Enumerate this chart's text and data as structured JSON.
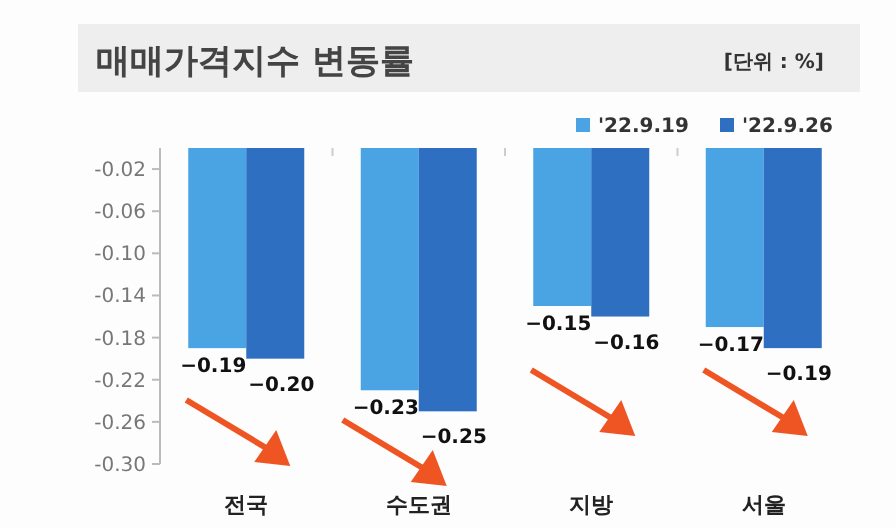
{
  "chart_data": {
    "type": "bar",
    "title": "매매가격지수 변동률",
    "subtitle": "[단위 : %]",
    "categories": [
      "전국",
      "수도권",
      "지방",
      "서울"
    ],
    "series": [
      {
        "name": "'22.9.19",
        "color": "#4aa3e2",
        "values": [
          -0.19,
          -0.23,
          -0.15,
          -0.17
        ],
        "value_labels": [
          "−0.19",
          "−0.23",
          "−0.15",
          "−0.17"
        ]
      },
      {
        "name": "'22.9.26",
        "color": "#2f6fc2",
        "values": [
          -0.2,
          -0.25,
          -0.16,
          -0.19
        ],
        "value_labels": [
          "−0.20",
          "−0.25",
          "−0.16",
          "−0.19"
        ]
      }
    ],
    "ylim": [
      -0.3,
      0
    ],
    "yticks": [
      -0.02,
      -0.06,
      {
        "value": -0.1,
        "label": "-0.10"
      },
      -0.14,
      -0.18,
      -0.22,
      -0.26,
      {
        "value": -0.3,
        "label": "-0.30"
      }
    ],
    "legend": "top right",
    "grid": false
  }
}
